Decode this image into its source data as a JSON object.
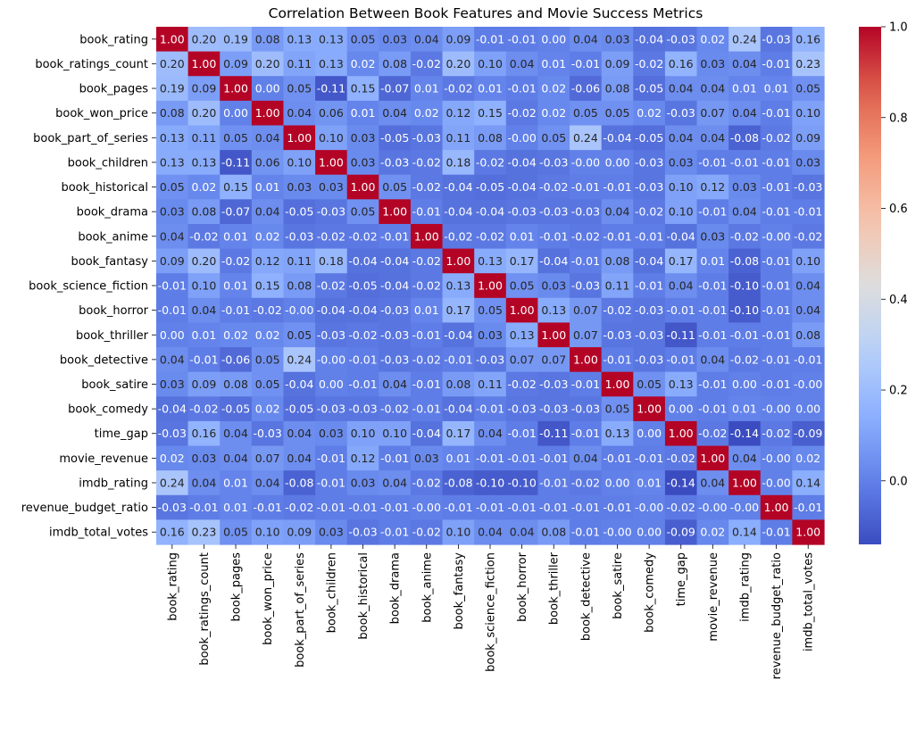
{
  "chart_data": {
    "type": "heatmap",
    "title": "Correlation Between Book Features and Movie Success Metrics",
    "xlabel": "",
    "ylabel": "",
    "colormap": "coolwarm",
    "vmin": -0.14,
    "vmax": 1.0,
    "colorbar_ticks": [
      "0.0",
      "0.2",
      "0.4",
      "0.6",
      "0.8",
      "1.0"
    ],
    "labels": [
      "book_rating",
      "book_ratings_count",
      "book_pages",
      "book_won_price",
      "book_part_of_series",
      "book_children",
      "book_historical",
      "book_drama",
      "book_anime",
      "book_fantasy",
      "book_science_fiction",
      "book_horror",
      "book_thriller",
      "book_detective",
      "book_satire",
      "book_comedy",
      "time_gap",
      "movie_revenue",
      "imdb_rating",
      "revenue_budget_ratio",
      "imdb_total_votes"
    ],
    "values": [
      [
        1.0,
        0.2,
        0.19,
        0.08,
        0.13,
        0.13,
        0.05,
        0.03,
        0.04,
        0.09,
        -0.01,
        -0.01,
        0.0,
        0.04,
        0.03,
        -0.04,
        -0.03,
        0.02,
        0.24,
        -0.03,
        0.16
      ],
      [
        0.2,
        1.0,
        0.09,
        0.2,
        0.11,
        0.13,
        0.02,
        0.08,
        -0.02,
        0.2,
        0.1,
        0.04,
        0.01,
        -0.01,
        0.09,
        -0.02,
        0.16,
        0.03,
        0.04,
        -0.01,
        0.23
      ],
      [
        0.19,
        0.09,
        1.0,
        0.0,
        0.05,
        -0.11,
        0.15,
        -0.07,
        0.01,
        -0.02,
        0.01,
        -0.01,
        0.02,
        -0.06,
        0.08,
        -0.05,
        0.04,
        0.04,
        0.01,
        0.01,
        0.05
      ],
      [
        0.08,
        0.2,
        0.0,
        1.0,
        0.04,
        0.06,
        0.01,
        0.04,
        0.02,
        0.12,
        0.15,
        -0.02,
        0.02,
        0.05,
        0.05,
        0.02,
        -0.03,
        0.07,
        0.04,
        -0.01,
        0.1
      ],
      [
        0.13,
        0.11,
        0.05,
        0.04,
        1.0,
        0.1,
        0.03,
        -0.05,
        -0.03,
        0.11,
        0.08,
        -0.0,
        0.05,
        0.24,
        -0.04,
        -0.05,
        0.04,
        0.04,
        -0.08,
        -0.02,
        0.09
      ],
      [
        0.13,
        0.13,
        -0.11,
        0.06,
        0.1,
        1.0,
        0.03,
        -0.03,
        -0.02,
        0.18,
        -0.02,
        -0.04,
        -0.03,
        -0.0,
        0.0,
        -0.03,
        0.03,
        -0.01,
        -0.01,
        -0.01,
        0.03
      ],
      [
        0.05,
        0.02,
        0.15,
        0.01,
        0.03,
        0.03,
        1.0,
        0.05,
        -0.02,
        -0.04,
        -0.05,
        -0.04,
        -0.02,
        -0.01,
        -0.01,
        -0.03,
        0.1,
        0.12,
        0.03,
        -0.01,
        -0.03
      ],
      [
        0.03,
        0.08,
        -0.07,
        0.04,
        -0.05,
        -0.03,
        0.05,
        1.0,
        -0.01,
        -0.04,
        -0.04,
        -0.03,
        -0.03,
        -0.03,
        0.04,
        -0.02,
        0.1,
        -0.01,
        0.04,
        -0.01,
        -0.01
      ],
      [
        0.04,
        -0.02,
        0.01,
        0.02,
        -0.03,
        -0.02,
        -0.02,
        -0.01,
        1.0,
        -0.02,
        -0.02,
        0.01,
        -0.01,
        -0.02,
        -0.01,
        -0.01,
        -0.04,
        0.03,
        -0.02,
        -0.0,
        -0.02
      ],
      [
        0.09,
        0.2,
        -0.02,
        0.12,
        0.11,
        0.18,
        -0.04,
        -0.04,
        -0.02,
        1.0,
        0.13,
        0.17,
        -0.04,
        -0.01,
        0.08,
        -0.04,
        0.17,
        0.01,
        -0.08,
        -0.01,
        0.1
      ],
      [
        -0.01,
        0.1,
        0.01,
        0.15,
        0.08,
        -0.02,
        -0.05,
        -0.04,
        -0.02,
        0.13,
        1.0,
        0.05,
        0.03,
        -0.03,
        0.11,
        -0.01,
        0.04,
        -0.01,
        -0.1,
        -0.01,
        0.04
      ],
      [
        -0.01,
        0.04,
        -0.01,
        -0.02,
        -0.0,
        -0.04,
        -0.04,
        -0.03,
        0.01,
        0.17,
        0.05,
        1.0,
        0.13,
        0.07,
        -0.02,
        -0.03,
        -0.01,
        -0.01,
        -0.1,
        -0.01,
        0.04
      ],
      [
        0.0,
        0.01,
        0.02,
        0.02,
        0.05,
        -0.03,
        -0.02,
        -0.03,
        -0.01,
        -0.04,
        0.03,
        0.13,
        1.0,
        0.07,
        -0.03,
        -0.03,
        -0.11,
        -0.01,
        -0.01,
        -0.01,
        0.08
      ],
      [
        0.04,
        -0.01,
        -0.06,
        0.05,
        0.24,
        -0.0,
        -0.01,
        -0.03,
        -0.02,
        -0.01,
        -0.03,
        0.07,
        0.07,
        1.0,
        -0.01,
        -0.03,
        -0.01,
        0.04,
        -0.02,
        -0.01,
        -0.01
      ],
      [
        0.03,
        0.09,
        0.08,
        0.05,
        -0.04,
        0.0,
        -0.01,
        0.04,
        -0.01,
        0.08,
        0.11,
        -0.02,
        -0.03,
        -0.01,
        1.0,
        0.05,
        0.13,
        -0.01,
        0.0,
        -0.01,
        -0.0
      ],
      [
        -0.04,
        -0.02,
        -0.05,
        0.02,
        -0.05,
        -0.03,
        -0.03,
        -0.02,
        -0.01,
        -0.04,
        -0.01,
        -0.03,
        -0.03,
        -0.03,
        0.05,
        1.0,
        0.0,
        -0.01,
        0.01,
        -0.0,
        0.0
      ],
      [
        -0.03,
        0.16,
        0.04,
        -0.03,
        0.04,
        0.03,
        0.1,
        0.1,
        -0.04,
        0.17,
        0.04,
        -0.01,
        -0.11,
        -0.01,
        0.13,
        0.0,
        1.0,
        -0.02,
        -0.14,
        -0.02,
        -0.09
      ],
      [
        0.02,
        0.03,
        0.04,
        0.07,
        0.04,
        -0.01,
        0.12,
        -0.01,
        0.03,
        0.01,
        -0.01,
        -0.01,
        -0.01,
        0.04,
        -0.01,
        -0.01,
        -0.02,
        1.0,
        0.04,
        -0.0,
        0.02
      ],
      [
        0.24,
        0.04,
        0.01,
        0.04,
        -0.08,
        -0.01,
        0.03,
        0.04,
        -0.02,
        -0.08,
        -0.1,
        -0.1,
        -0.01,
        -0.02,
        0.0,
        0.01,
        -0.14,
        0.04,
        1.0,
        -0.0,
        0.14
      ],
      [
        -0.03,
        -0.01,
        0.01,
        -0.01,
        -0.02,
        -0.01,
        -0.01,
        -0.01,
        -0.0,
        -0.01,
        -0.01,
        -0.01,
        -0.01,
        -0.01,
        -0.01,
        -0.0,
        -0.02,
        -0.0,
        -0.0,
        1.0,
        -0.01
      ],
      [
        0.16,
        0.23,
        0.05,
        0.1,
        0.09,
        0.03,
        -0.03,
        -0.01,
        -0.02,
        0.1,
        0.04,
        0.04,
        0.08,
        -0.01,
        -0.0,
        0.0,
        -0.09,
        0.02,
        0.14,
        -0.01,
        1.0
      ]
    ]
  }
}
